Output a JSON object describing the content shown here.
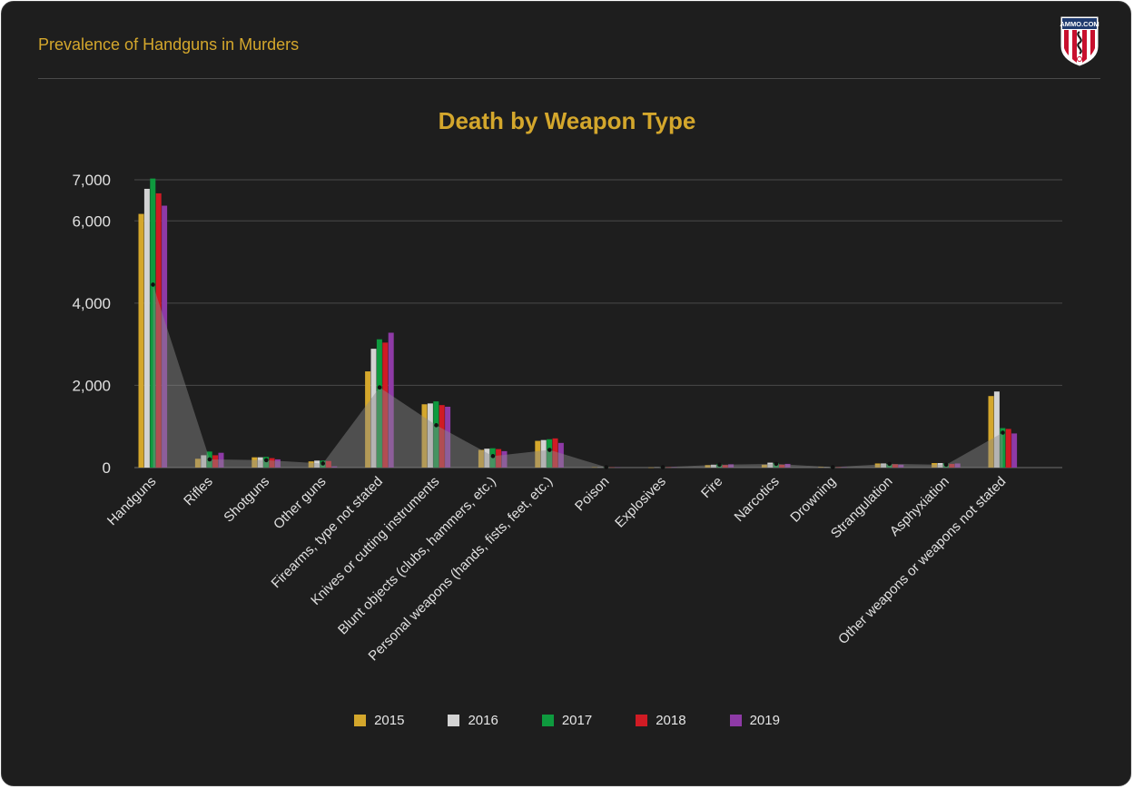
{
  "header": {
    "title": "Prevalence of Handguns in Murders",
    "logo_text": "AMMO.COM"
  },
  "colors": {
    "background": "#1e1e1e",
    "accent": "#d4a72c",
    "area": "#8c8c8c",
    "series": [
      "#d4a72c",
      "#d3d3d3",
      "#0e9a3e",
      "#d01b24",
      "#8e3aa6"
    ]
  },
  "chart_data": {
    "type": "bar",
    "title": "Death by Weapon Type",
    "xlabel": "",
    "ylabel": "",
    "ylim": [
      0,
      7000
    ],
    "yticks": [
      0,
      2000,
      4000,
      6000,
      7000
    ],
    "ytick_labels": [
      "0",
      "2,000",
      "4,000",
      "6,000",
      "7,000"
    ],
    "grid": true,
    "legend_position": "bottom",
    "categories": [
      "Handguns",
      "Rifles",
      "Shotguns",
      "Other guns",
      "Firearms, type not stated",
      "Knives or cutting instruments",
      "Blunt objects (clubs, hammers, etc.)",
      "Personal weapons (hands, fists, feet, etc.)",
      "Poison",
      "Explosives",
      "Fire",
      "Narcotics",
      "Drowning",
      "Strangulation",
      "Asphyxiation",
      "Other weapons or weapons not stated"
    ],
    "series": [
      {
        "name": "2015",
        "values": [
          6170,
          215,
          250,
          150,
          2340,
          1540,
          430,
          650,
          10,
          5,
          60,
          70,
          15,
          100,
          110,
          1740
        ]
      },
      {
        "name": "2016",
        "values": [
          6780,
          300,
          250,
          170,
          2890,
          1560,
          460,
          670,
          10,
          10,
          70,
          120,
          10,
          100,
          110,
          1850
        ]
      },
      {
        "name": "2017",
        "values": [
          7030,
          390,
          260,
          170,
          3120,
          1610,
          470,
          690,
          10,
          10,
          90,
          110,
          10,
          90,
          100,
          960
        ]
      },
      {
        "name": "2018",
        "values": [
          6670,
          300,
          230,
          160,
          3040,
          1520,
          450,
          710,
          10,
          10,
          60,
          70,
          10,
          80,
          90,
          940
        ]
      },
      {
        "name": "2019",
        "values": [
          6370,
          360,
          200,
          30,
          3280,
          1480,
          400,
          600,
          10,
          10,
          80,
          90,
          10,
          70,
          100,
          830
        ]
      }
    ],
    "area_series": [
      4450,
      200,
      180,
      100,
      1950,
      1030,
      280,
      430,
      10,
      10,
      70,
      90,
      10,
      90,
      70,
      850
    ]
  }
}
